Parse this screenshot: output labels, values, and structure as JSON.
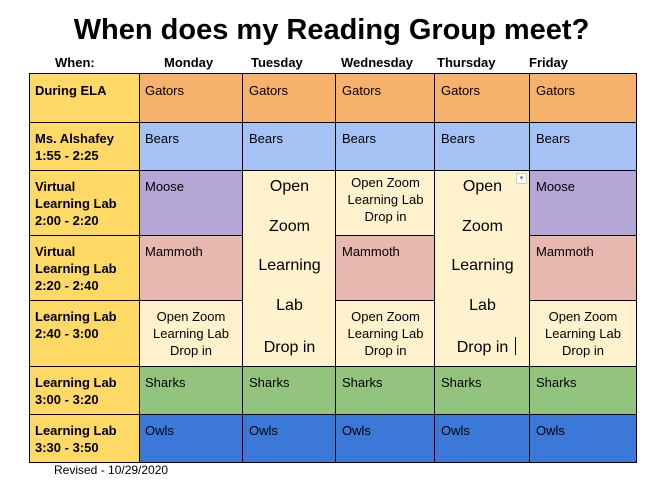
{
  "title": "When does my Reading Group meet?",
  "headers": {
    "when": "When:",
    "days": [
      "Monday",
      "Tuesday",
      "Wednesday",
      "Thursday",
      "Friday"
    ]
  },
  "rows": [
    {
      "label": [
        "During ELA"
      ]
    },
    {
      "label": [
        "Ms. Alshafey",
        "1:55 - 2:25"
      ]
    },
    {
      "label": [
        "Virtual",
        "Learning Lab",
        "2:00 - 2:20"
      ]
    },
    {
      "label": [
        "Virtual",
        "Learning Lab",
        "2:20 - 2:40"
      ]
    },
    {
      "label": [
        "Learning Lab",
        "2:40 - 3:00"
      ]
    },
    {
      "label": [
        "Learning Lab",
        "3:00 - 3:20"
      ]
    },
    {
      "label": [
        "Learning Lab",
        "3:30 - 3:50"
      ]
    }
  ],
  "cells": {
    "gators": "Gators",
    "bears": "Bears",
    "moose": "Moose",
    "mammoth": "Mammoth",
    "sharks": "Sharks",
    "owls": "Owls",
    "drop_in_small": [
      "Open Zoom",
      "Learning Lab",
      "Drop in"
    ],
    "drop_in_big": [
      "Open",
      "Zoom",
      "Learning",
      "Lab",
      "Drop in"
    ]
  },
  "colors": {
    "label": "#ffd966",
    "gators": "#f6b26b",
    "bears": "#a4c2f4",
    "moose": "#b4a7d6",
    "mammoth": "#e6b8af",
    "drop_in": "#fff2cc",
    "sharks": "#93c47d",
    "owls": "#3c78d8"
  },
  "footer": "Revised - 10/29/2020"
}
